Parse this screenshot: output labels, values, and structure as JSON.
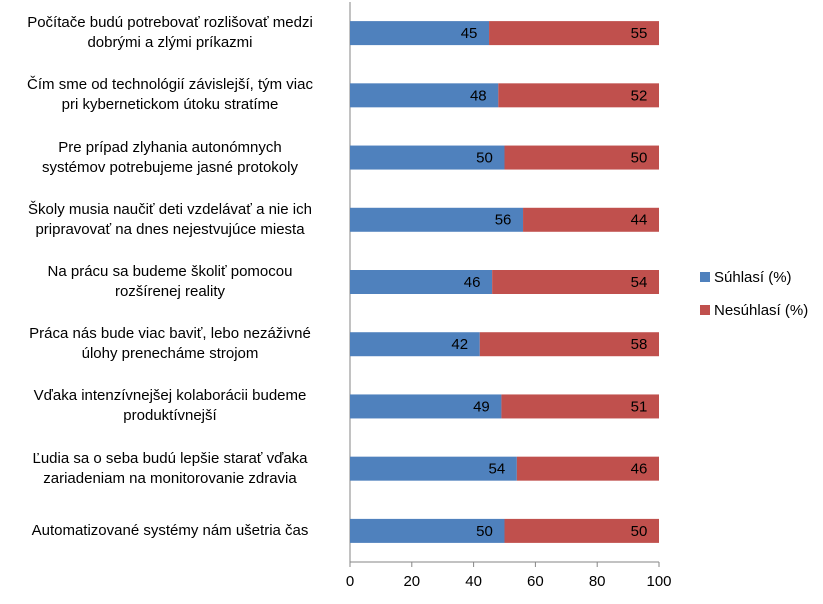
{
  "chart_data": {
    "type": "stacked-barh",
    "categories": [
      "Počítače budú potrebovať rozlišovať medzi\ndobrými a zlými príkazmi",
      "Čím sme od technológií závislejší, tým viac\npri kybernetickom útoku stratíme",
      "Pre prípad zlyhania autonómnych\nsystémov potrebujeme jasné protokoly",
      "Školy musia naučiť deti vzdelávať a nie ich\npripravovať na dnes nejestvujúce miesta",
      "Na prácu sa budeme školiť pomocou\nrozšírenej reality",
      "Práca nás bude viac baviť, lebo nezáživné\núlohy prenecháme strojom",
      "Vďaka intenzívnejšej kolaborácii budeme\nproduktívnejší",
      "Ľudia sa o seba budú lepšie starať vďaka\nzariadeniam na monitorovanie zdravia",
      "Automatizované systémy nám ušetria čas"
    ],
    "series": [
      {
        "name": "Súhlasí (%)",
        "color": "#4f81bd",
        "values": [
          45,
          48,
          50,
          56,
          46,
          42,
          49,
          54,
          50
        ]
      },
      {
        "name": "Nesúhlasí (%)",
        "color": "#c0504d",
        "values": [
          55,
          52,
          50,
          44,
          54,
          58,
          51,
          46,
          50
        ]
      }
    ],
    "xlim": [
      0,
      100
    ],
    "xticks": [
      0,
      20,
      40,
      60,
      80,
      100
    ],
    "legend": "right"
  }
}
